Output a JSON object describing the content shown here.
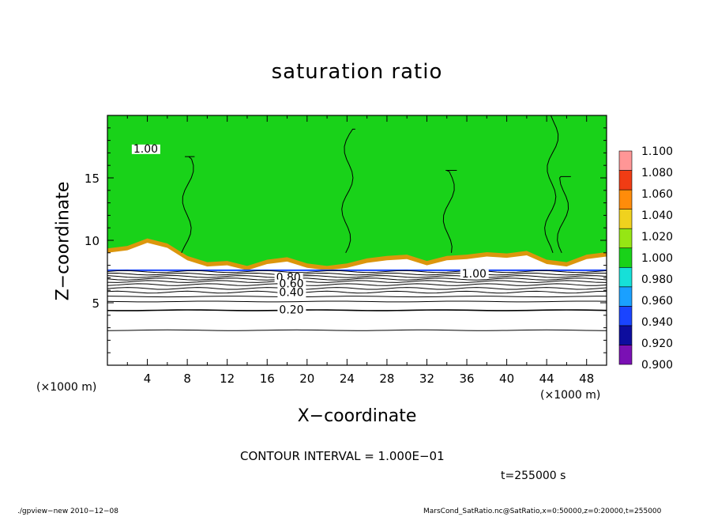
{
  "chart_data": {
    "type": "heatmap",
    "title": "saturation ratio",
    "xlabel": "X−coordinate",
    "ylabel": "Z−coordinate",
    "x_unit_label": "(×1000 m)",
    "x_ticks": [
      4,
      8,
      12,
      16,
      20,
      24,
      28,
      32,
      36,
      40,
      44,
      48
    ],
    "y_ticks": [
      5,
      10,
      15
    ],
    "xlim": [
      0,
      50
    ],
    "ylim": [
      0,
      20
    ],
    "colorbar": {
      "levels": [
        "0.900",
        "0.920",
        "0.940",
        "0.960",
        "0.980",
        "1.000",
        "1.020",
        "1.040",
        "1.060",
        "1.080",
        "1.100"
      ],
      "colors": [
        "#7a10b4",
        "#0d0d9e",
        "#1a44ff",
        "#1aa0ff",
        "#16e0d8",
        "#19d219",
        "#96e614",
        "#f0d21e",
        "#ff8c0a",
        "#f03c14",
        "#ff9696"
      ]
    },
    "field_colors": {
      "saturated": "#19d219",
      "subsaturated": "#ffffff",
      "supersaturated_edge": "#ff8c0a"
    },
    "contour_labels": [
      {
        "text": "1.00",
        "x": 2.6,
        "y": 17.1
      },
      {
        "text": "0.80",
        "x": 16.9,
        "y": 6.8
      },
      {
        "text": "0.60",
        "x": 17.2,
        "y": 6.3
      },
      {
        "text": "0.40",
        "x": 17.2,
        "y": 5.6
      },
      {
        "text": "0.20",
        "x": 17.2,
        "y": 4.2
      },
      {
        "text": "1.00",
        "x": 35.5,
        "y": 7.1
      }
    ],
    "contour_levels_z": [
      7.5,
      7.3,
      7.1,
      6.9,
      6.7,
      6.45,
      6.15,
      5.85,
      5.5,
      5.1,
      4.4,
      2.8
    ],
    "cloud_top_profile": [
      [
        0,
        9.0
      ],
      [
        2,
        9.2
      ],
      [
        4,
        9.8
      ],
      [
        6,
        9.4
      ],
      [
        8,
        8.4
      ],
      [
        10,
        7.9
      ],
      [
        12,
        8.0
      ],
      [
        14,
        7.6
      ],
      [
        16,
        8.1
      ],
      [
        18,
        8.3
      ],
      [
        20,
        7.8
      ],
      [
        22,
        7.6
      ],
      [
        24,
        7.8
      ],
      [
        26,
        8.2
      ],
      [
        28,
        8.4
      ],
      [
        30,
        8.5
      ],
      [
        32,
        8.0
      ],
      [
        34,
        8.4
      ],
      [
        36,
        8.5
      ],
      [
        38,
        8.7
      ],
      [
        40,
        8.6
      ],
      [
        42,
        8.8
      ],
      [
        44,
        8.1
      ],
      [
        46,
        7.9
      ],
      [
        48,
        8.5
      ],
      [
        50,
        8.7
      ]
    ]
  },
  "annotations": {
    "contour_interval": "CONTOUR INTERVAL = 1.000E−01",
    "time": "t=255000 s",
    "footer_left": "./gpview−new   2010−12−08",
    "footer_right": "MarsCond_SatRatio.nc@SatRatio,x=0:50000,z=0:20000,t=255000"
  }
}
